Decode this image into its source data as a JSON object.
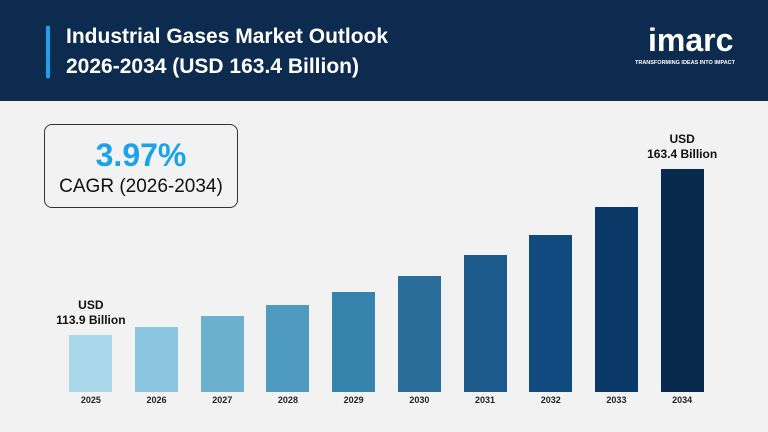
{
  "header": {
    "title": "Industrial Gases Market Outlook\n2026-2034 (USD 163.4 Billion)",
    "logo": "imarc",
    "tagline": "TRANSFORMING IDEAS INTO IMPACT"
  },
  "highlight": {
    "value": "3.97%",
    "label": "CAGR (2026-2034)"
  },
  "chart_data": {
    "type": "bar",
    "categories": [
      "2025",
      "2026",
      "2027",
      "2028",
      "2029",
      "2030",
      "2031",
      "2032",
      "2033",
      "2034"
    ],
    "values": [
      113.9,
      116.3,
      119.5,
      122.8,
      126.6,
      131.4,
      137.6,
      143.8,
      152.1,
      163.4
    ],
    "value_labels": [
      "USD\n113.9 Billion",
      null,
      null,
      null,
      null,
      null,
      null,
      null,
      null,
      "USD\n163.4 Billion"
    ],
    "colors": [
      "#a8d8ea",
      "#8ac6df",
      "#6bb0cf",
      "#4f9bc0",
      "#3683ad",
      "#2a6d9a",
      "#1c5a8c",
      "#114a7e",
      "#0b3968",
      "#082a4d"
    ],
    "ylim": [
      97,
      166
    ]
  }
}
